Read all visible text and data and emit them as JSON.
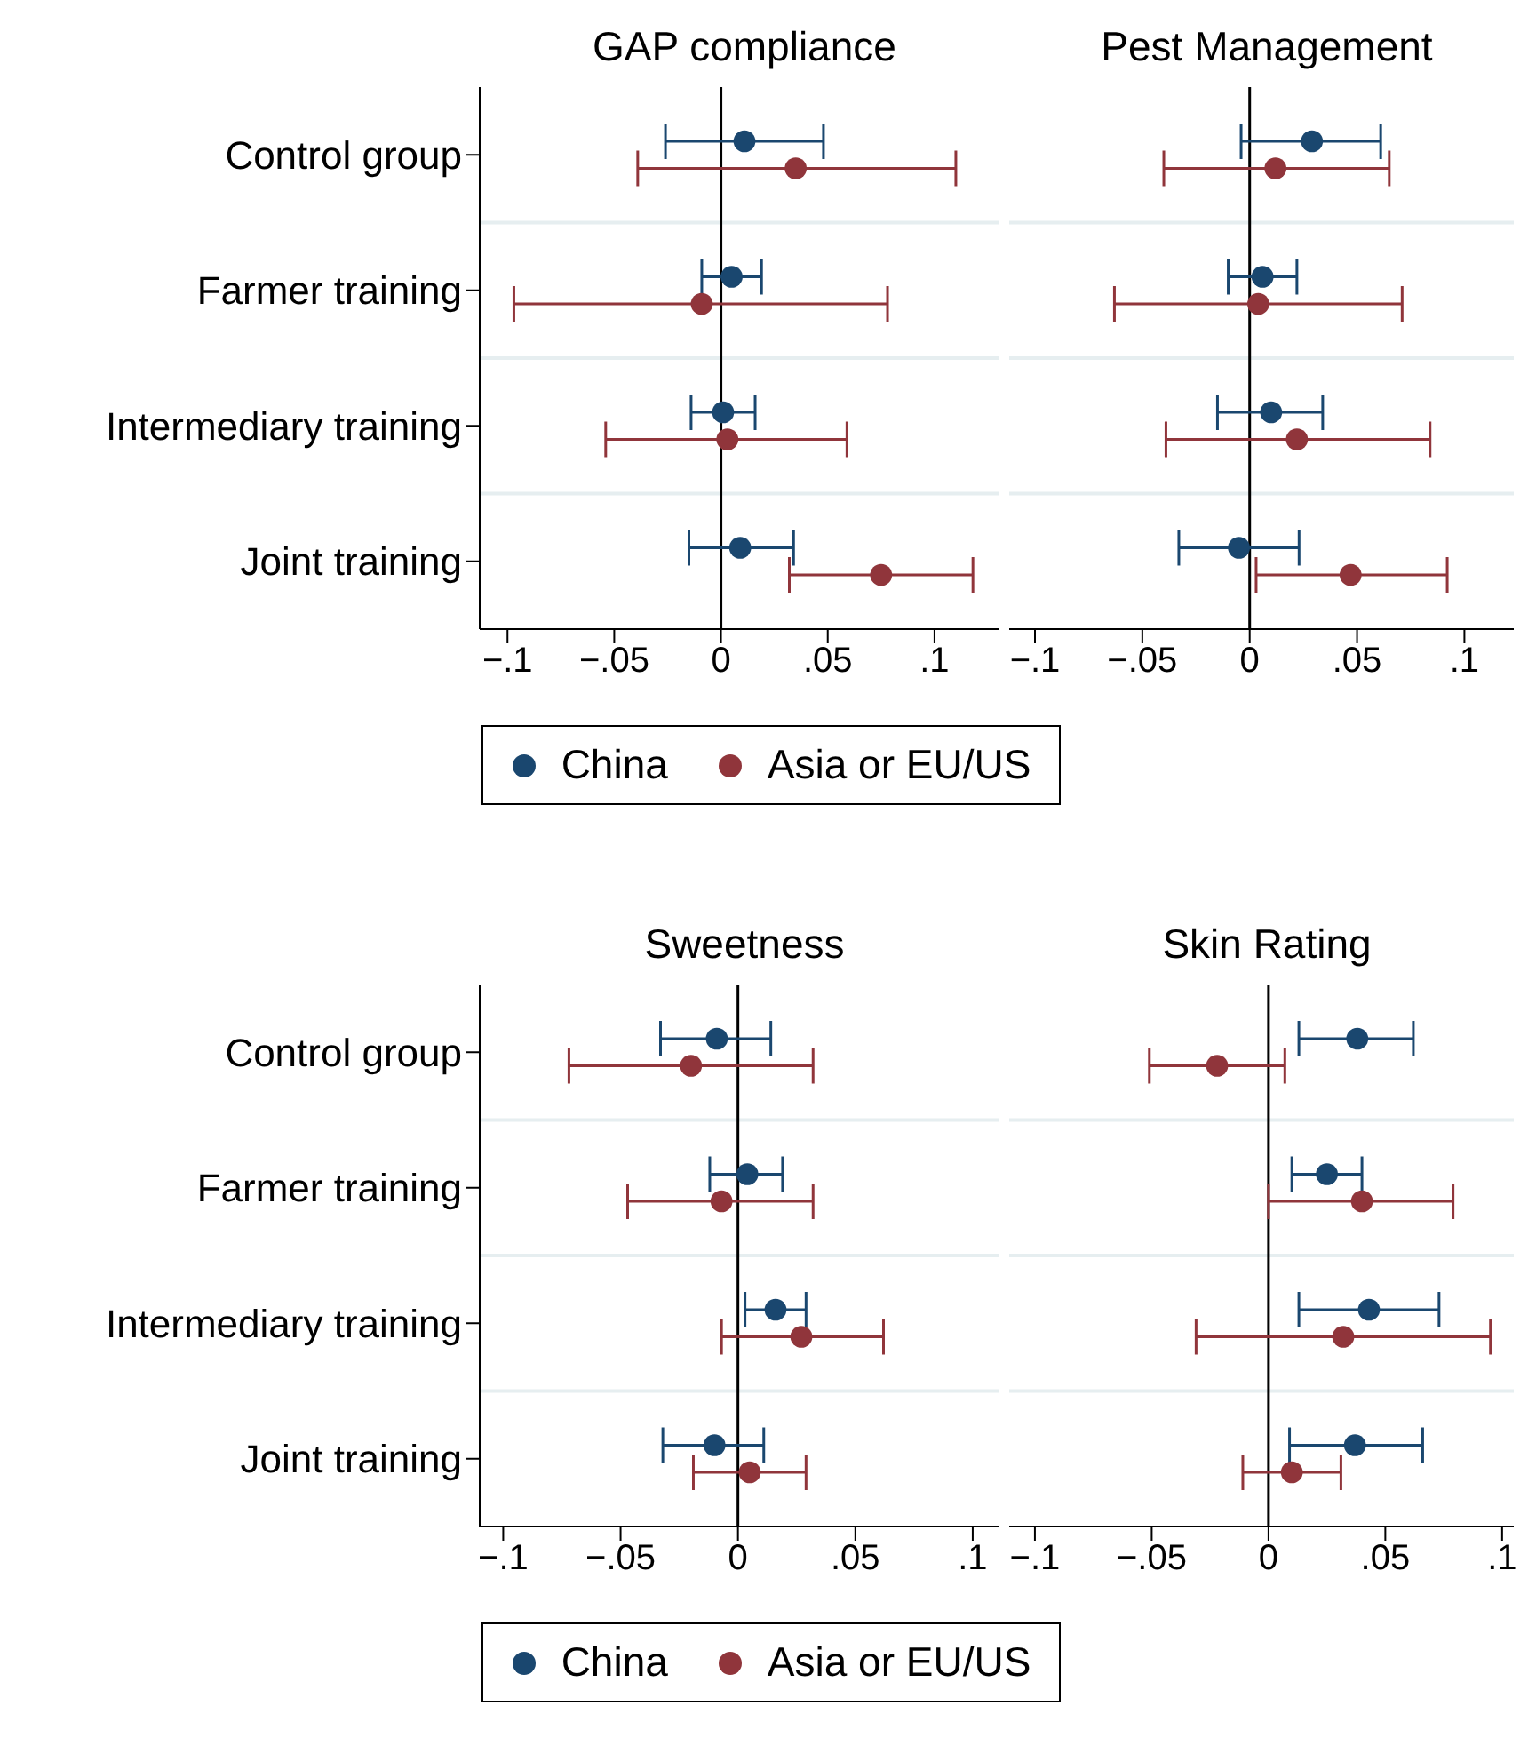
{
  "chart_data": [
    {
      "type": "scatter",
      "orientation": "horizontal",
      "title": "GAP compliance",
      "categories": [
        "Control group",
        "Farmer training",
        "Intermediary training",
        "Joint training"
      ],
      "xlim": [
        -0.113,
        0.13
      ],
      "xticks": [
        {
          "value": -0.1,
          "label": "−.1"
        },
        {
          "value": -0.05,
          "label": "−.05"
        },
        {
          "value": 0,
          "label": "0"
        },
        {
          "value": 0.05,
          "label": ".05"
        },
        {
          "value": 0.1,
          "label": ".1"
        }
      ],
      "grid": "y",
      "marker": "circle",
      "legend": "bottom",
      "ref_lines": [
        {
          "axis": "x",
          "value": 0
        }
      ],
      "series": [
        {
          "name": "China",
          "color": "#1a476f",
          "values": [
            0.011,
            0.005,
            0.001,
            0.009
          ],
          "errors": [
            [
              -0.026,
              0.048
            ],
            [
              -0.009,
              0.019
            ],
            [
              -0.014,
              0.016
            ],
            [
              -0.015,
              0.034
            ]
          ]
        },
        {
          "name": "Asia or EU/US",
          "color": "#90353b",
          "values": [
            0.035,
            -0.009,
            0.003,
            0.075
          ],
          "errors": [
            [
              -0.039,
              0.11
            ],
            [
              -0.097,
              0.078
            ],
            [
              -0.054,
              0.059
            ],
            [
              0.032,
              0.118
            ]
          ]
        }
      ]
    },
    {
      "type": "scatter",
      "orientation": "horizontal",
      "title": "Pest Management",
      "categories": [
        null,
        null,
        null,
        null
      ],
      "tick_labels": "x",
      "xlim": [
        -0.112,
        0.123
      ],
      "xticks": [
        {
          "value": -0.1,
          "label": "−.1"
        },
        {
          "value": -0.05,
          "label": "−.05"
        },
        {
          "value": 0,
          "label": "0"
        },
        {
          "value": 0.05,
          "label": ".05"
        },
        {
          "value": 0.1,
          "label": ".1"
        }
      ],
      "grid": "y",
      "marker": "circle",
      "ref_lines": [
        {
          "axis": "x",
          "value": 0
        }
      ],
      "series": [
        {
          "color": "#1a476f",
          "values": [
            0.029,
            0.006,
            0.01,
            -0.005
          ],
          "errors": [
            [
              -0.004,
              0.061
            ],
            [
              -0.01,
              0.022
            ],
            [
              -0.015,
              0.034
            ],
            [
              -0.033,
              0.023
            ]
          ]
        },
        {
          "color": "#90353b",
          "values": [
            0.012,
            0.004,
            0.022,
            0.047
          ],
          "errors": [
            [
              -0.04,
              0.065
            ],
            [
              -0.063,
              0.071
            ],
            [
              -0.039,
              0.084
            ],
            [
              0.003,
              0.092
            ]
          ]
        }
      ]
    },
    {
      "type": "scatter",
      "orientation": "horizontal",
      "title": "Sweetness",
      "categories": [
        "Control group",
        "Farmer training",
        "Intermediary training",
        "Joint training"
      ],
      "xlim": [
        -0.11,
        0.111
      ],
      "xticks": [
        {
          "value": -0.1,
          "label": "−.1"
        },
        {
          "value": -0.05,
          "label": "−.05"
        },
        {
          "value": 0,
          "label": "0"
        },
        {
          "value": 0.05,
          "label": ".05"
        },
        {
          "value": 0.1,
          "label": ".1"
        }
      ],
      "grid": "y",
      "marker": "circle",
      "legend": "bottom",
      "ref_lines": [
        {
          "axis": "x",
          "value": 0
        }
      ],
      "series": [
        {
          "name": "China",
          "color": "#1a476f",
          "values": [
            -0.009,
            0.004,
            0.016,
            -0.01
          ],
          "errors": [
            [
              -0.033,
              0.014
            ],
            [
              -0.012,
              0.019
            ],
            [
              0.003,
              0.029
            ],
            [
              -0.032,
              0.011
            ]
          ]
        },
        {
          "name": "Asia or EU/US",
          "color": "#90353b",
          "values": [
            -0.02,
            -0.007,
            0.027,
            0.005
          ],
          "errors": [
            [
              -0.072,
              0.032
            ],
            [
              -0.047,
              0.032
            ],
            [
              -0.007,
              0.062
            ],
            [
              -0.019,
              0.029
            ]
          ]
        }
      ]
    },
    {
      "type": "scatter",
      "orientation": "horizontal",
      "title": "Skin Rating",
      "categories": [
        null,
        null,
        null,
        null
      ],
      "tick_labels": "x",
      "xlim": [
        -0.111,
        0.105
      ],
      "xticks": [
        {
          "value": -0.1,
          "label": "−.1"
        },
        {
          "value": -0.05,
          "label": "−.05"
        },
        {
          "value": 0,
          "label": "0"
        },
        {
          "value": 0.05,
          "label": ".05"
        },
        {
          "value": 0.1,
          "label": ".1"
        }
      ],
      "grid": "y",
      "marker": "circle",
      "ref_lines": [
        {
          "axis": "x",
          "value": 0
        }
      ],
      "series": [
        {
          "color": "#1a476f",
          "values": [
            0.038,
            0.025,
            0.043,
            0.037
          ],
          "errors": [
            [
              0.013,
              0.062
            ],
            [
              0.01,
              0.04
            ],
            [
              0.013,
              0.073
            ],
            [
              0.009,
              0.066
            ]
          ]
        },
        {
          "color": "#90353b",
          "values": [
            -0.022,
            0.04,
            0.032,
            0.01
          ],
          "errors": [
            [
              -0.051,
              0.007
            ],
            [
              0,
              0.079
            ],
            [
              -0.031,
              0.095
            ],
            [
              -0.011,
              0.031
            ]
          ]
        }
      ]
    }
  ]
}
